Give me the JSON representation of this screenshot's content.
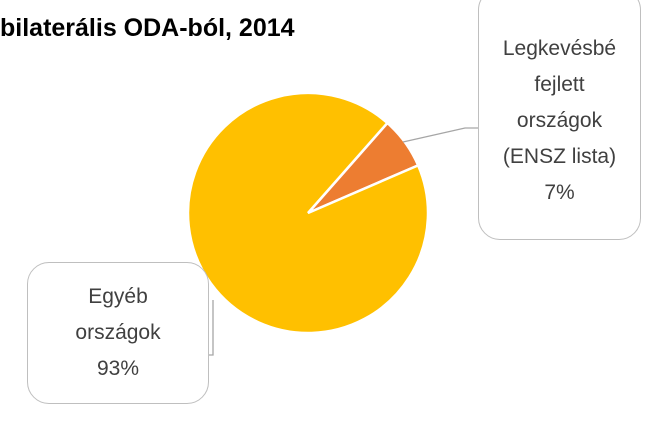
{
  "chart_data": {
    "type": "pie",
    "title": "bilaterális ODA-ból, 2014",
    "categories": [
      "Legkevésbé fejlett országok (ENSZ lista)",
      "Egyéb országok"
    ],
    "values": [
      7,
      93
    ],
    "value_labels": [
      "7%",
      "93%"
    ],
    "colors": [
      "#ed7d31",
      "#ffc000"
    ]
  }
}
